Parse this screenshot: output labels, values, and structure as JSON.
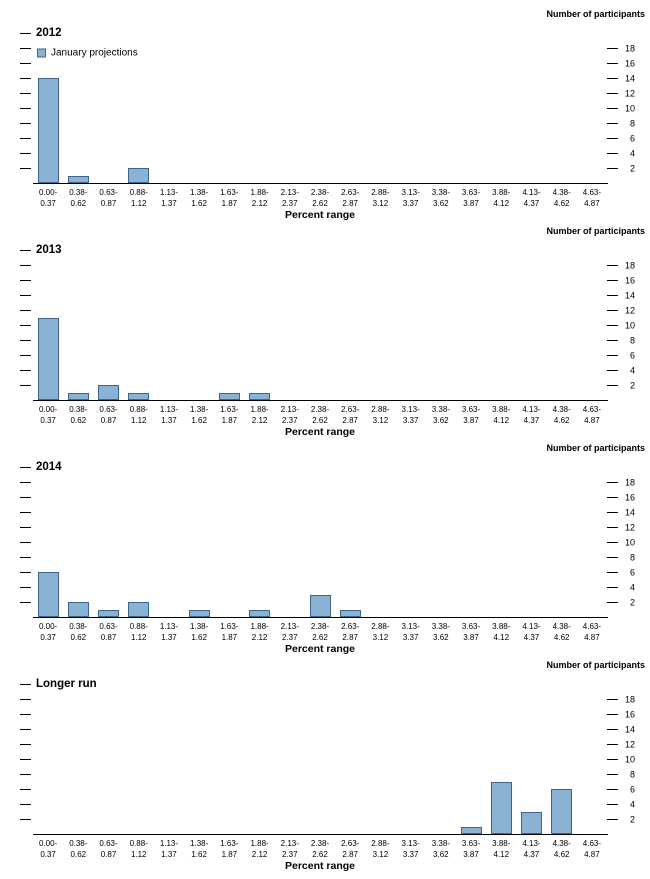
{
  "colors": {
    "bar_fill": "#8ab2d4",
    "bar_border": "#3d658c",
    "axis": "#000000"
  },
  "chart_data": [
    {
      "type": "bar",
      "title": "2012",
      "legend": "January projections",
      "ylabel": "Number of participants",
      "xlabel": "Percent range",
      "ylim": [
        0,
        20
      ],
      "yticks": [
        2,
        4,
        6,
        8,
        10,
        12,
        14,
        16,
        18
      ],
      "categories": [
        "0.00-0.37",
        "0.38-0.62",
        "0.63-0.87",
        "0.88-1.12",
        "1.13-1.37",
        "1.38-1.62",
        "1.63-1.87",
        "1.88-2.12",
        "2.13-2.37",
        "2.38-2.62",
        "2.63-2.87",
        "2.88-3.12",
        "3.13-3.37",
        "3.38-3.62",
        "3.63-3.87",
        "3.88-4.12",
        "4.13-4.37",
        "4.38-4.62",
        "4.63-4.87"
      ],
      "values": [
        14,
        1,
        0,
        2,
        0,
        0,
        0,
        0,
        0,
        0,
        0,
        0,
        0,
        0,
        0,
        0,
        0,
        0,
        0
      ]
    },
    {
      "type": "bar",
      "title": "2013",
      "ylabel": "Number of participants",
      "xlabel": "Percent range",
      "ylim": [
        0,
        20
      ],
      "yticks": [
        2,
        4,
        6,
        8,
        10,
        12,
        14,
        16,
        18
      ],
      "categories": [
        "0.00-0.37",
        "0.38-0.62",
        "0.63-0.87",
        "0.88-1.12",
        "1.13-1.37",
        "1.38-1.62",
        "1.63-1.87",
        "1.88-2.12",
        "2.13-2.37",
        "2.38-2.62",
        "2.63-2.87",
        "2.88-3.12",
        "3.13-3.37",
        "3.38-3.62",
        "3.63-3.87",
        "3.88-4.12",
        "4.13-4.37",
        "4.38-4.62",
        "4.63-4.87"
      ],
      "values": [
        11,
        1,
        2,
        1,
        0,
        0,
        1,
        1,
        0,
        0,
        0,
        0,
        0,
        0,
        0,
        0,
        0,
        0,
        0
      ]
    },
    {
      "type": "bar",
      "title": "2014",
      "ylabel": "Number of participants",
      "xlabel": "Percent range",
      "ylim": [
        0,
        20
      ],
      "yticks": [
        2,
        4,
        6,
        8,
        10,
        12,
        14,
        16,
        18
      ],
      "categories": [
        "0.00-0.37",
        "0.38-0.62",
        "0.63-0.87",
        "0.88-1.12",
        "1.13-1.37",
        "1.38-1.62",
        "1.63-1.87",
        "1.88-2.12",
        "2.13-2.37",
        "2.38-2.62",
        "2.63-2.87",
        "2.88-3.12",
        "3.13-3.37",
        "3.38-3.62",
        "3.63-3.87",
        "3.88-4.12",
        "4.13-4.37",
        "4.38-4.62",
        "4.63-4.87"
      ],
      "values": [
        6,
        2,
        1,
        2,
        0,
        1,
        0,
        1,
        0,
        3,
        1,
        0,
        0,
        0,
        0,
        0,
        0,
        0,
        0
      ]
    },
    {
      "type": "bar",
      "title": "Longer run",
      "ylabel": "Number of participants",
      "xlabel": "Percent range",
      "ylim": [
        0,
        20
      ],
      "yticks": [
        2,
        4,
        6,
        8,
        10,
        12,
        14,
        16,
        18
      ],
      "categories": [
        "0.00-0.37",
        "0.38-0.62",
        "0.63-0.87",
        "0.88-1.12",
        "1.13-1.37",
        "1.38-1.62",
        "1.63-1.87",
        "1.88-2.12",
        "2.13-2.37",
        "2.38-2.62",
        "2.63-2.87",
        "2.88-3.12",
        "3.13-3.37",
        "3.38-3.62",
        "3.63-3.87",
        "3.88-4.12",
        "4.13-4.37",
        "4.38-4.62",
        "4.63-4.87"
      ],
      "values": [
        0,
        0,
        0,
        0,
        0,
        0,
        0,
        0,
        0,
        0,
        0,
        0,
        0,
        0,
        1,
        7,
        3,
        6,
        0
      ]
    }
  ]
}
